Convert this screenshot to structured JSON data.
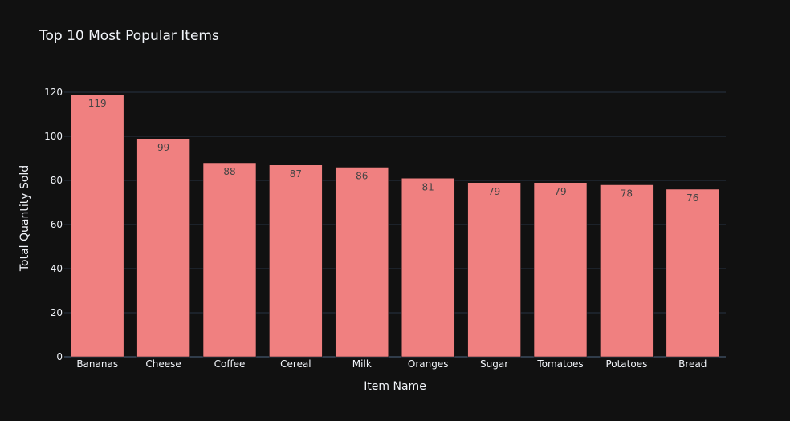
{
  "chart_data": {
    "type": "bar",
    "title": "Top 10 Most Popular Items",
    "xlabel": "Item Name",
    "ylabel": "Total Quantity Sold",
    "categories": [
      "Bananas",
      "Cheese",
      "Coffee",
      "Cereal",
      "Milk",
      "Oranges",
      "Sugar",
      "Tomatoes",
      "Potatoes",
      "Bread"
    ],
    "values": [
      119,
      99,
      88,
      87,
      86,
      81,
      79,
      79,
      78,
      76
    ],
    "ylim": [
      0,
      120
    ],
    "yticks": [
      0,
      20,
      40,
      60,
      80,
      100,
      120
    ],
    "grid": true,
    "bar_color": "#f08080",
    "background": "#111111",
    "gridline_color": "#283442",
    "text_color": "#f2f5fa",
    "data_label_color": "#444444"
  }
}
